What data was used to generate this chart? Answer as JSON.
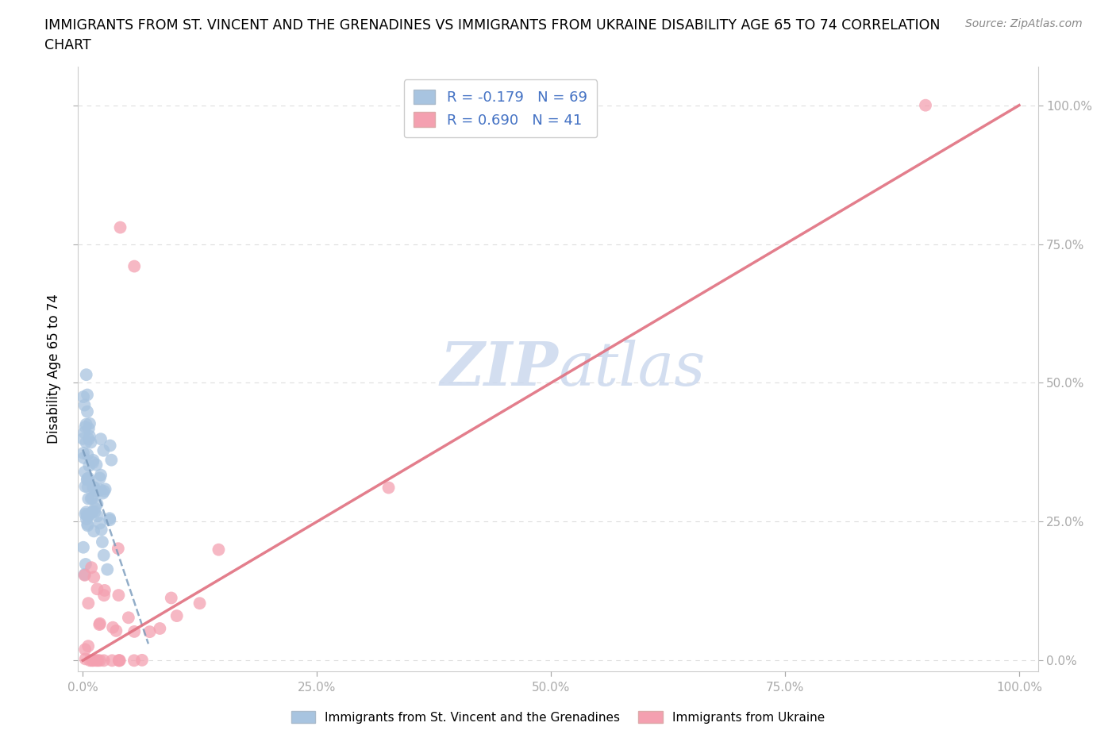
{
  "title_line1": "IMMIGRANTS FROM ST. VINCENT AND THE GRENADINES VS IMMIGRANTS FROM UKRAINE DISABILITY AGE 65 TO 74 CORRELATION",
  "title_line2": "CHART",
  "source_text": "Source: ZipAtlas.com",
  "ylabel": "Disability Age 65 to 74",
  "y_tick_labels": [
    "0.0%",
    "25.0%",
    "50.0%",
    "75.0%",
    "100.0%"
  ],
  "x_tick_labels": [
    "0.0%",
    "25.0%",
    "50.0%",
    "75.0%",
    "100.0%"
  ],
  "legend_label_blue": "Immigrants from St. Vincent and the Grenadines",
  "legend_label_pink": "Immigrants from Ukraine",
  "legend_r_blue": "R = -0.179",
  "legend_n_blue": "N = 69",
  "legend_r_pink": "R = 0.690",
  "legend_n_pink": "N = 41",
  "color_blue": "#a8c4e0",
  "color_pink": "#f4a0b0",
  "color_blue_line": "#7799bb",
  "color_pink_line": "#e07080",
  "color_axis_text": "#4472c4",
  "watermark_color": "#ccd9ee",
  "grid_color": "#dddddd"
}
